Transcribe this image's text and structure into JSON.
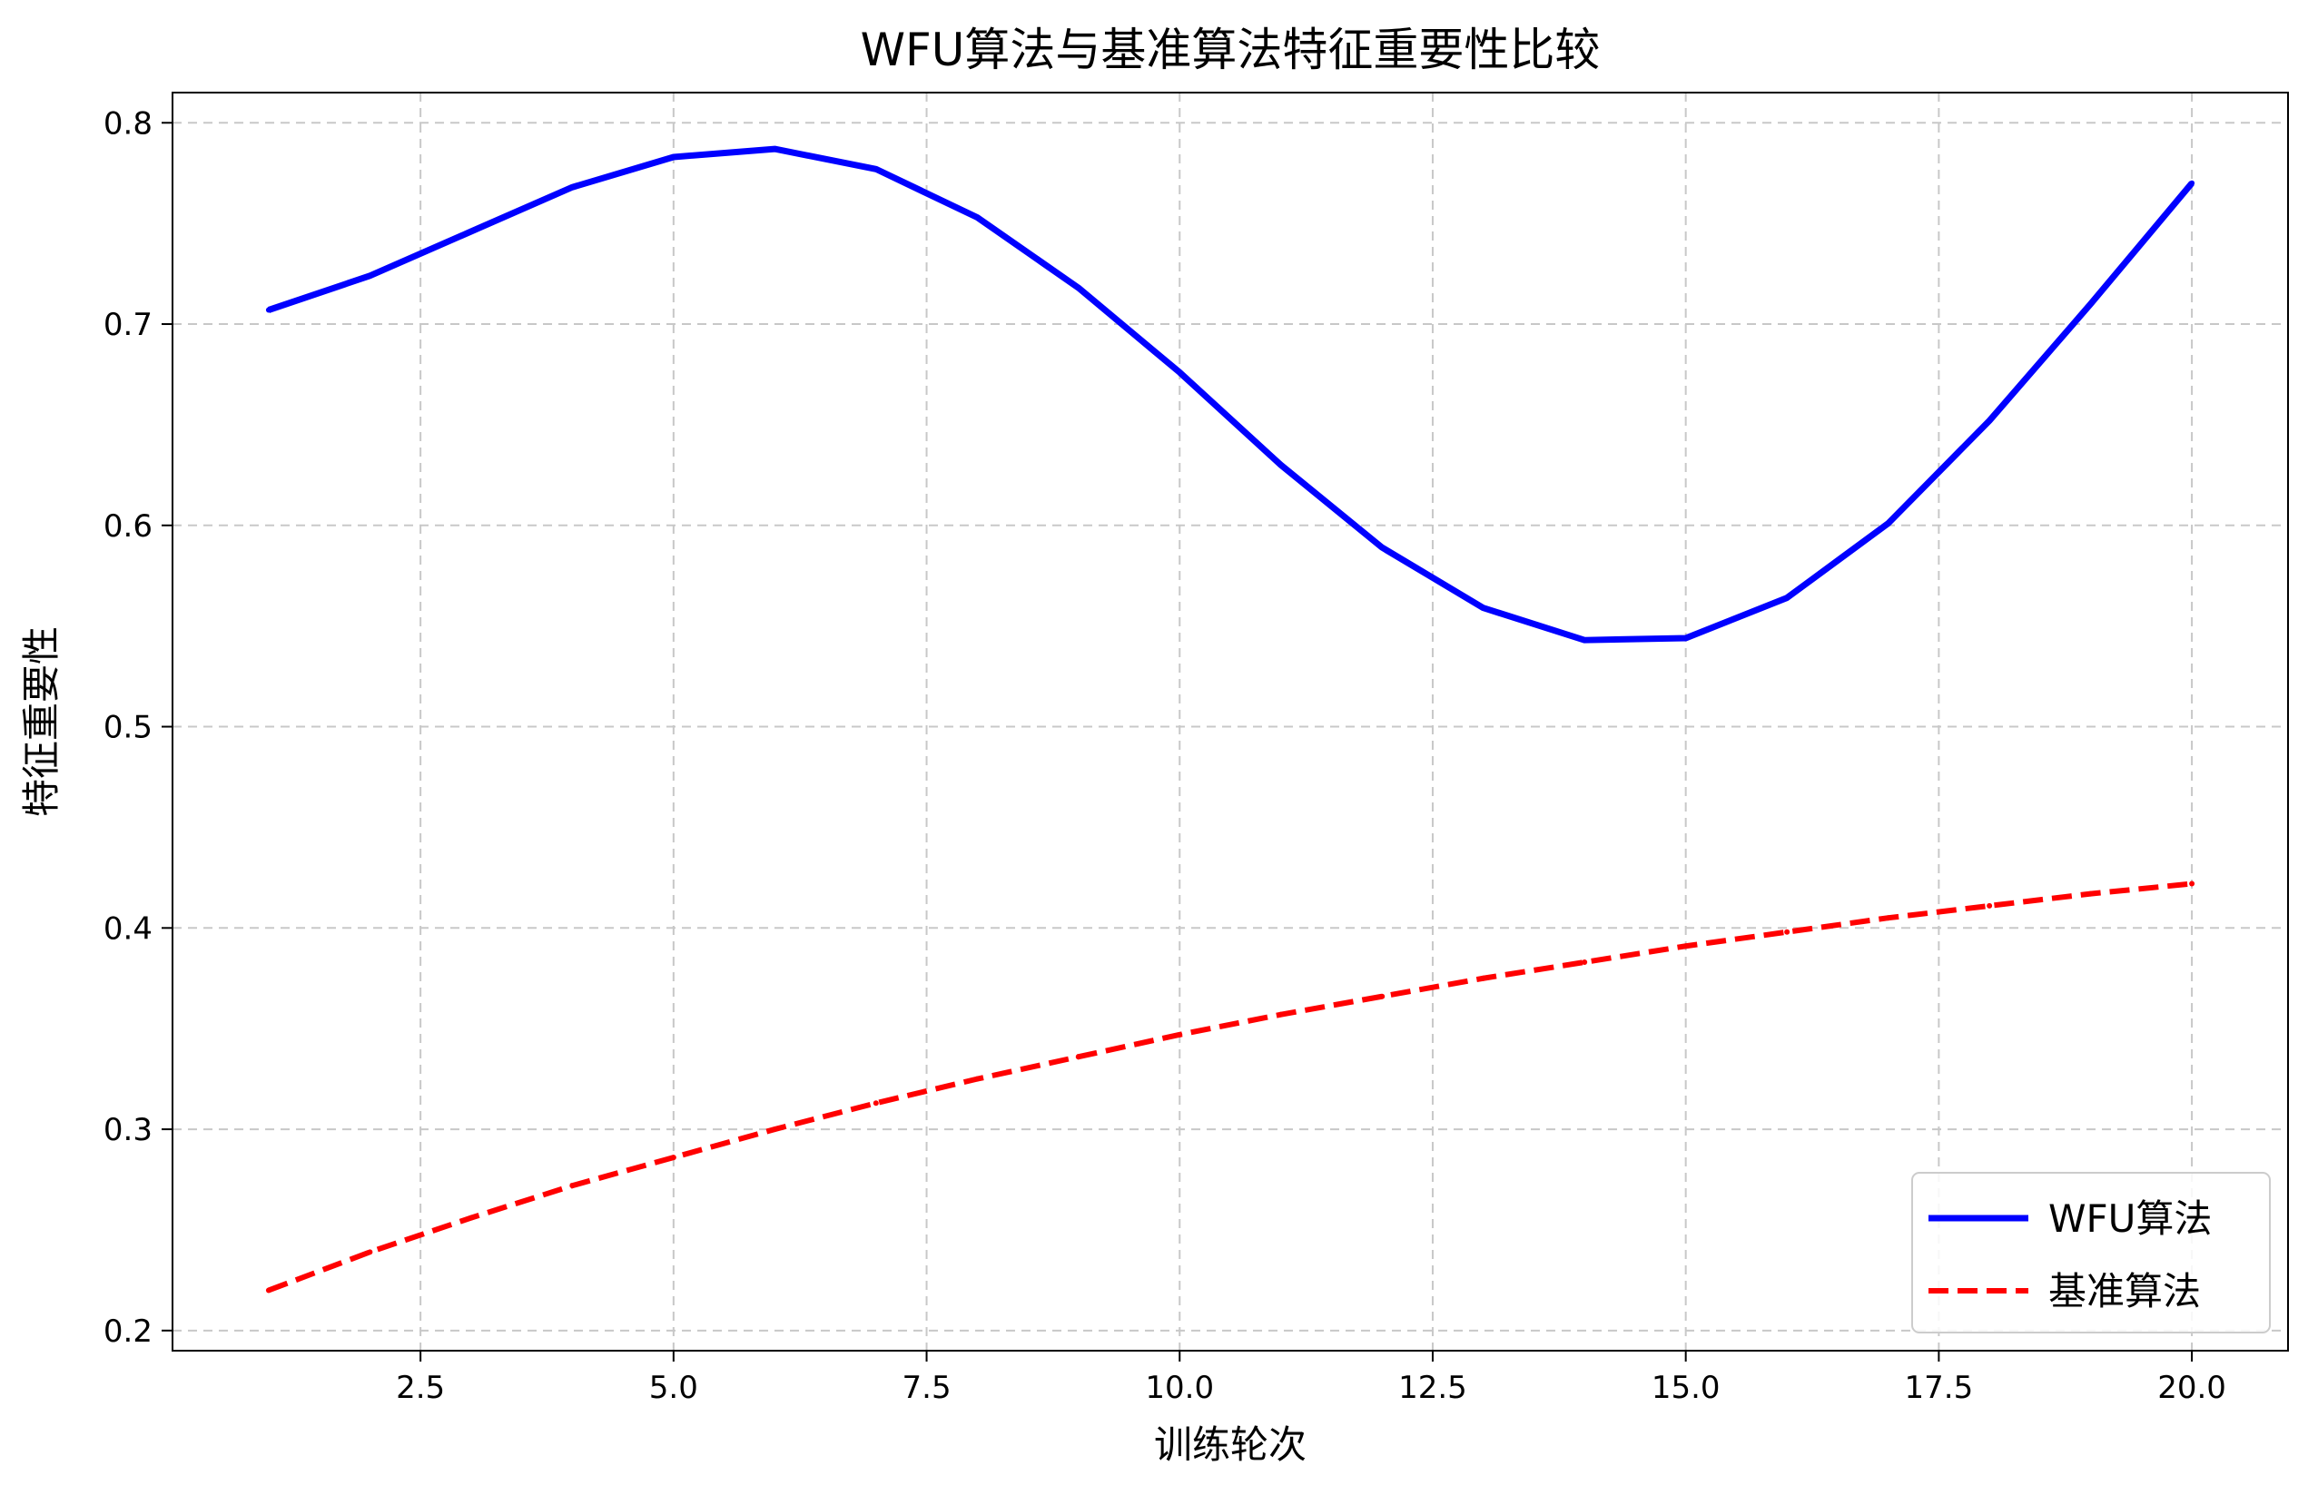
{
  "chart_data": {
    "type": "line",
    "title": "WFU算法与基准算法特征重要性比较",
    "xlabel": "训练轮次",
    "ylabel": "特征重要性",
    "xlim": [
      0.05,
      20.95
    ],
    "ylim": [
      0.19,
      0.815
    ],
    "xticks": [
      2.5,
      5.0,
      7.5,
      10.0,
      12.5,
      15.0,
      17.5,
      20.0
    ],
    "xtick_labels": [
      "2.5",
      "5.0",
      "7.5",
      "10.0",
      "12.5",
      "15.0",
      "17.5",
      "20.0"
    ],
    "yticks": [
      0.2,
      0.3,
      0.4,
      0.5,
      0.6,
      0.7,
      0.8
    ],
    "ytick_labels": [
      "0.2",
      "0.3",
      "0.4",
      "0.5",
      "0.6",
      "0.7",
      "0.8"
    ],
    "grid": true,
    "legend_position": "bottom-right",
    "x": [
      1,
      2,
      3,
      4,
      5,
      6,
      7,
      8,
      9,
      10,
      11,
      12,
      13,
      14,
      15,
      16,
      17,
      18,
      19,
      20
    ],
    "series": [
      {
        "name": "WFU算法",
        "color": "#0000ff",
        "style": "solid",
        "values": [
          0.707,
          0.724,
          0.746,
          0.768,
          0.783,
          0.787,
          0.777,
          0.753,
          0.718,
          0.676,
          0.63,
          0.589,
          0.559,
          0.543,
          0.544,
          0.564,
          0.601,
          0.652,
          0.71,
          0.77
        ]
      },
      {
        "name": "基准算法",
        "color": "#ff0000",
        "style": "dashed",
        "values": [
          0.22,
          0.239,
          0.256,
          0.272,
          0.286,
          0.3,
          0.313,
          0.325,
          0.336,
          0.347,
          0.357,
          0.366,
          0.375,
          0.383,
          0.391,
          0.398,
          0.405,
          0.411,
          0.417,
          0.422
        ]
      }
    ]
  }
}
